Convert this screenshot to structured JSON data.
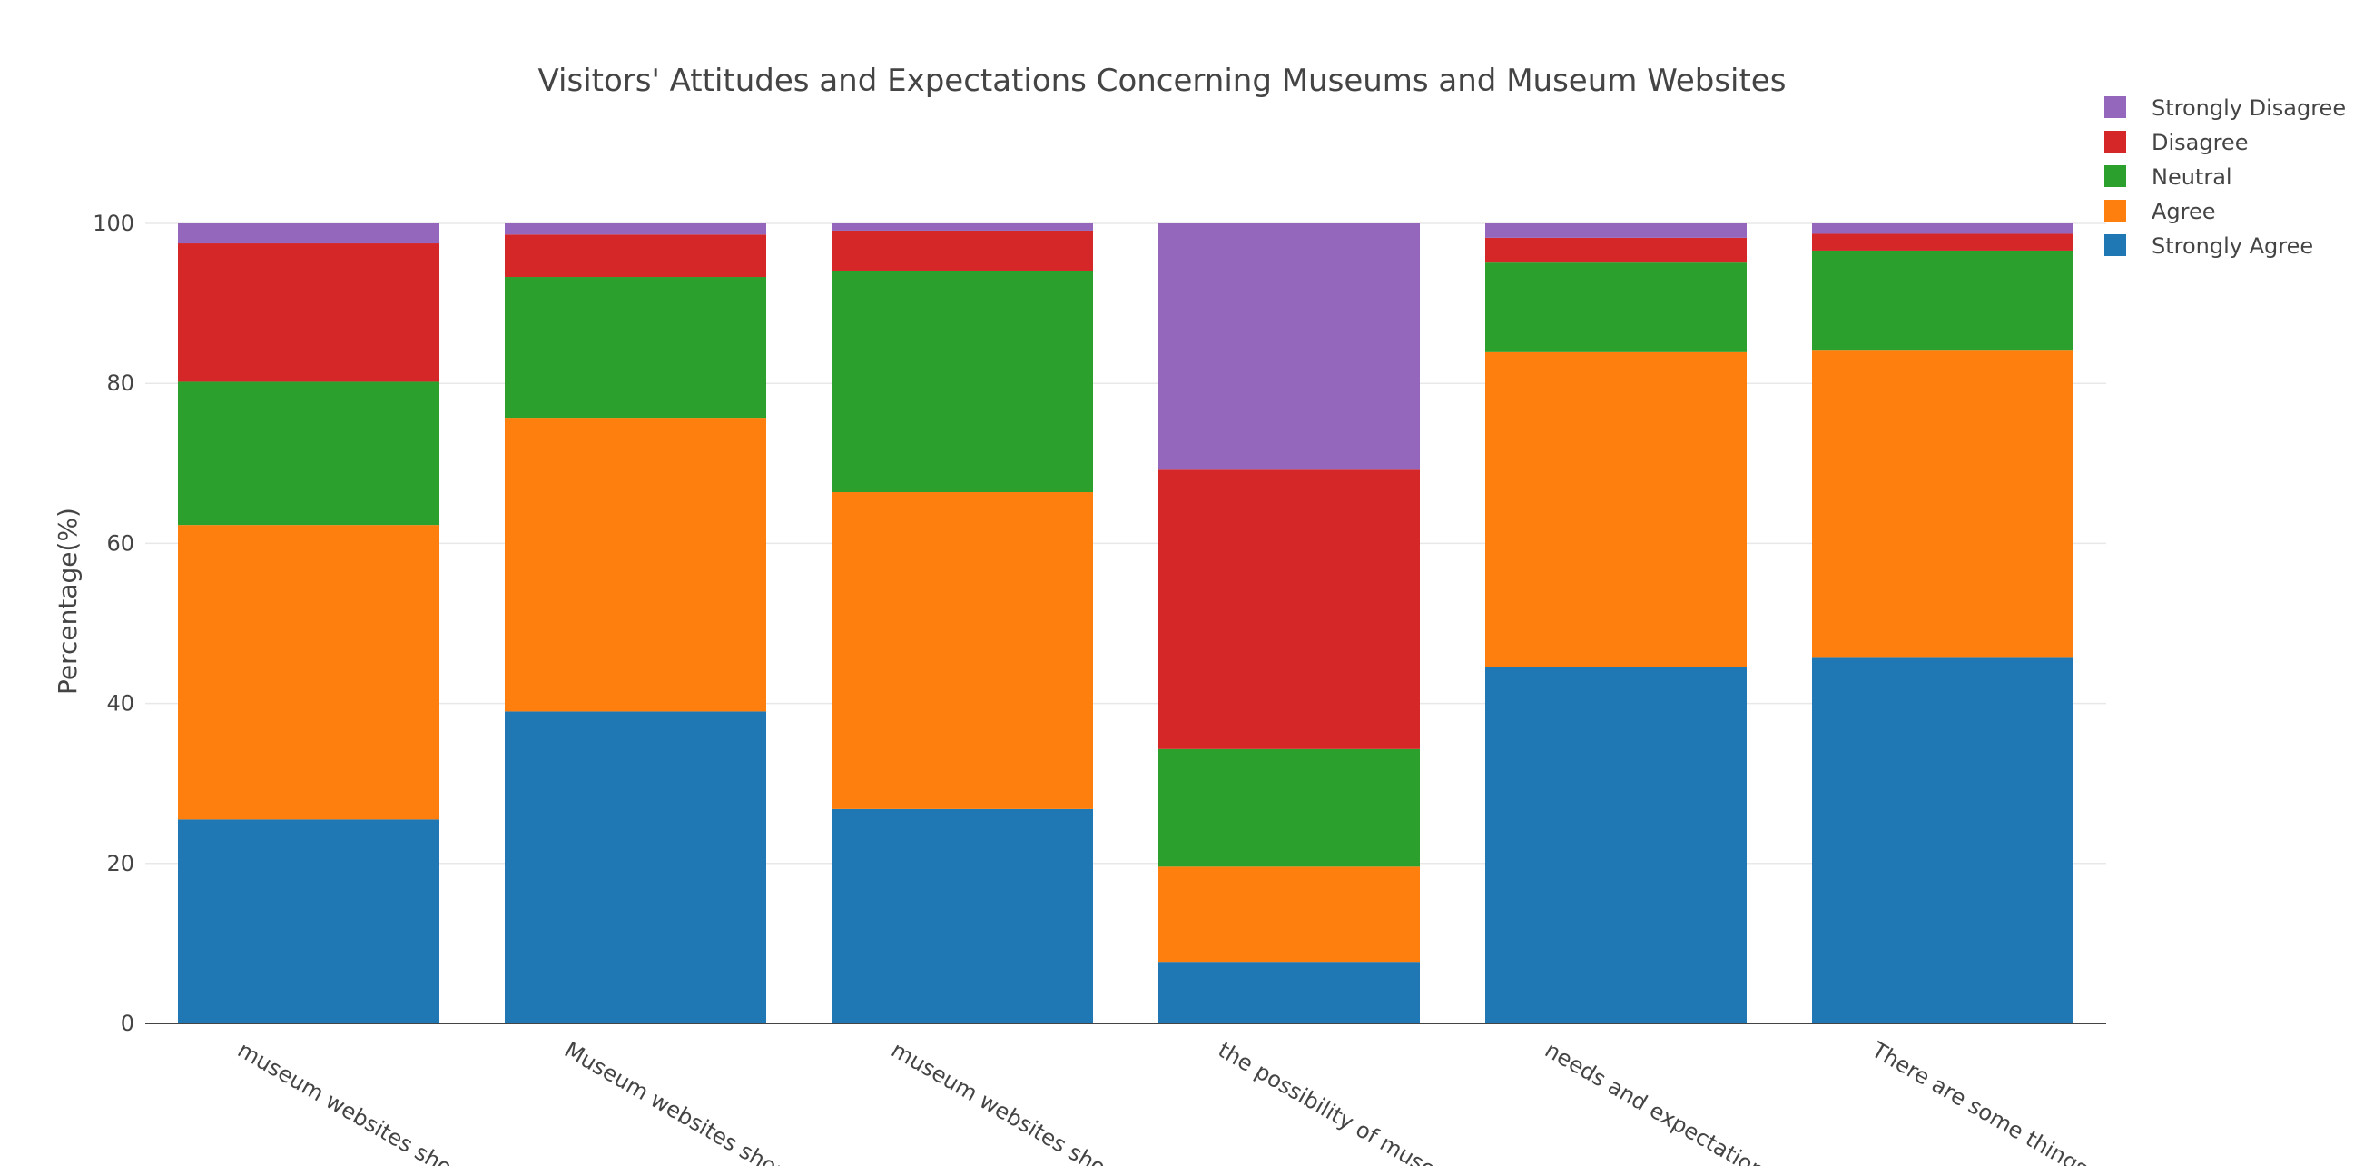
{
  "chart_data": {
    "type": "bar",
    "stacked": true,
    "title": "Visitors' Attitudes and Expectations Concerning Museums and Museum Websites",
    "xlabel": "",
    "ylabel": "Percentage(%)",
    "ylim": [
      0,
      100
    ],
    "yticks": [
      0,
      20,
      40,
      60,
      80,
      100
    ],
    "grid": true,
    "legend_position": "top-right",
    "categories": [
      "museum websites shoul",
      "Museum websites should",
      "museum websites shoul",
      "the possibility of museu",
      "needs and expectations",
      "There are some things I"
    ],
    "series": [
      {
        "name": "Strongly Agree",
        "color": "#1f77b4",
        "values": [
          25.5,
          39.0,
          26.8,
          7.7,
          44.6,
          45.7
        ]
      },
      {
        "name": "Agree",
        "color": "#ff7f0e",
        "values": [
          36.8,
          36.7,
          39.6,
          11.9,
          39.3,
          38.5
        ]
      },
      {
        "name": "Neutral",
        "color": "#2ca02c",
        "values": [
          17.9,
          17.6,
          27.7,
          14.7,
          11.2,
          12.4
        ]
      },
      {
        "name": "Disagree",
        "color": "#d62728",
        "values": [
          17.3,
          5.3,
          5.0,
          34.9,
          3.1,
          2.1
        ]
      },
      {
        "name": "Strongly Disagree",
        "color": "#9467bd",
        "values": [
          2.5,
          1.4,
          0.9,
          30.8,
          1.8,
          1.3
        ]
      }
    ]
  }
}
